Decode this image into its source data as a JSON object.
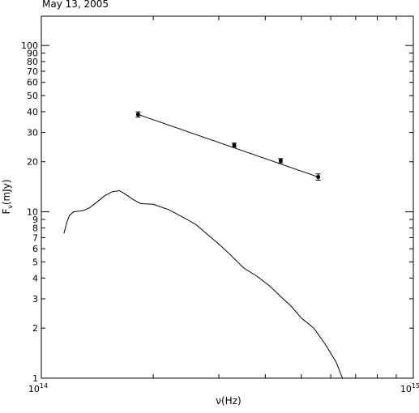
{
  "chart_data": {
    "type": "scatter",
    "title": "May 13, 2005",
    "xlabel": "ν(Hz)",
    "ylabel_main": "F",
    "ylabel_sub": "ν",
    "ylabel_rest": "(mJy)",
    "x_scale": "log",
    "y_scale": "log",
    "xlim": [
      100000000000000.0,
      1000000000000000.0
    ],
    "ylim": [
      1,
      150
    ],
    "grid": false,
    "x_tick_labels": [
      {
        "value": 100000000000000.0,
        "base": "10",
        "exp": "14"
      },
      {
        "value": 1000000000000000.0,
        "base": "10",
        "exp": "15"
      }
    ],
    "y_tick_labels": [
      "1",
      "2",
      "3",
      "4",
      "5",
      "6",
      "7",
      "8",
      "9",
      "10",
      "20",
      "30",
      "40",
      "50",
      "60",
      "70",
      "80",
      "90",
      "100"
    ],
    "series": [
      {
        "kind": "points_with_errors",
        "x": [
          182000000000000.0,
          330000000000000.0,
          440000000000000.0,
          555000000000000.0
        ],
        "y": [
          38.5,
          25.2,
          20.3,
          16.2
        ],
        "yerr": [
          1.4,
          0.7,
          0.6,
          0.7
        ]
      },
      {
        "kind": "power_law_fit",
        "x": [
          182000000000000.0,
          555000000000000.0
        ],
        "y": [
          38.5,
          16.2
        ]
      },
      {
        "kind": "spectrum",
        "x": [
          115000000000000.0,
          117000000000000.0,
          119000000000000.0,
          122000000000000.0,
          126000000000000.0,
          130000000000000.0,
          135000000000000.0,
          140000000000000.0,
          148000000000000.0,
          155000000000000.0,
          162000000000000.0,
          168000000000000.0,
          175000000000000.0,
          185000000000000.0,
          200000000000000.0,
          220000000000000.0,
          240000000000000.0,
          260000000000000.0,
          280000000000000.0,
          300000000000000.0,
          320000000000000.0,
          350000000000000.0,
          380000000000000.0,
          410000000000000.0,
          440000000000000.0,
          470000000000000.0,
          500000000000000.0,
          540000000000000.0,
          580000000000000.0,
          620000000000000.0,
          645000000000000.0
        ],
        "y": [
          7.4,
          8.6,
          9.5,
          10.0,
          10.1,
          10.2,
          10.6,
          11.3,
          12.5,
          13.2,
          13.4,
          12.8,
          12.0,
          11.2,
          11.1,
          10.3,
          9.3,
          8.4,
          7.3,
          6.4,
          5.6,
          4.6,
          4.1,
          3.6,
          3.1,
          2.7,
          2.3,
          2.0,
          1.6,
          1.25,
          1.0
        ]
      }
    ]
  }
}
